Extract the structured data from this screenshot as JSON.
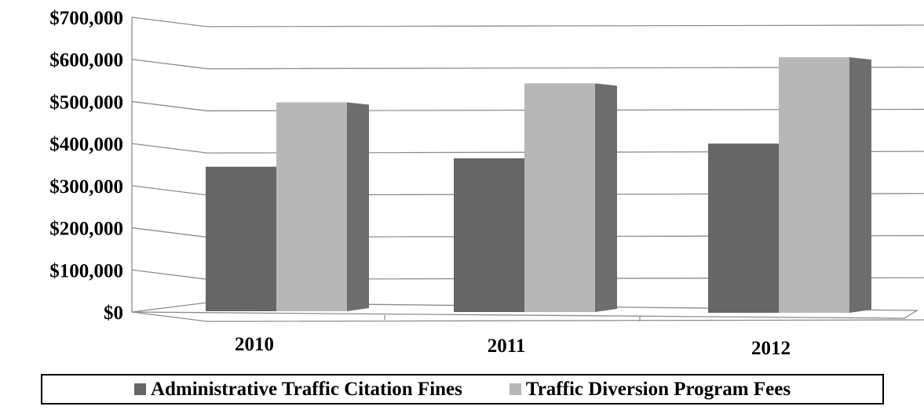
{
  "chart_data": {
    "type": "bar",
    "categories": [
      "2010",
      "2011",
      "2012"
    ],
    "series": [
      {
        "name": "Administrative Traffic Citation Fines",
        "values": [
          345000,
          365000,
          400000
        ],
        "color": "#666666"
      },
      {
        "name": "Traffic Diversion Program Fees",
        "values": [
          498000,
          543000,
          605000
        ],
        "color": "#b7b7b7"
      }
    ],
    "y_ticks": [
      "$0",
      "$100,000",
      "$200,000",
      "$300,000",
      "$400,000",
      "$500,000",
      "$600,000",
      "$700,000"
    ],
    "ylim": [
      0,
      700000
    ],
    "grid": true,
    "legend_position": "bottom",
    "style": "3d-clustered-column"
  }
}
